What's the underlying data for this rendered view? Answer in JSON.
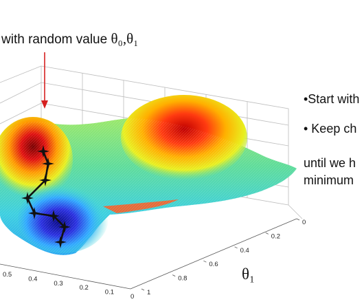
{
  "slide": {
    "caption_text": "with random value",
    "caption_params": "θ₀,θ₁",
    "theta1_axis_label": "θ₁",
    "bullets": [
      "•Start with",
      "• Keep ch",
      "until we h",
      "minimum"
    ]
  },
  "chart_data": {
    "type": "surface",
    "title": "",
    "theta1_axis": {
      "ticks": [
        "0",
        "0.2",
        "0.4",
        "0.6",
        "0.8",
        "1"
      ]
    },
    "theta0_axis": {
      "ticks": [
        "0.5",
        "0.4",
        "0.3",
        "0.2",
        "0.1",
        "0"
      ]
    },
    "descent_path_points": 9,
    "colormap": "jet",
    "arrow_color": "#d62020",
    "path_color": "#111111"
  }
}
